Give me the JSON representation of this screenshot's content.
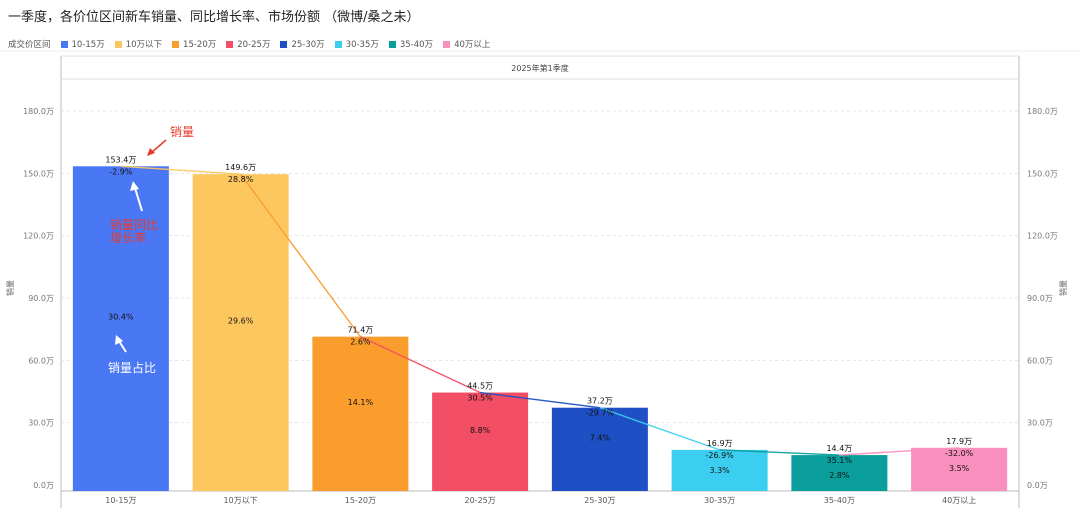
{
  "page": {
    "title": "一季度，各价位区间新车销量、同比增长率、市场份额 （微博/桑之未）",
    "legend_label": "成交价区间"
  },
  "chart_data": {
    "type": "bar",
    "panel_label": "2025年第1季度",
    "ylabel_left": "销量",
    "ylabel_right": "销量",
    "ylim": [
      0,
      180
    ],
    "yticks": [
      0,
      30,
      60,
      90,
      120,
      150,
      180
    ],
    "ytick_labels": [
      "0.0万",
      "30.0万",
      "60.0万",
      "90.0万",
      "120.0万",
      "150.0万",
      "180.0万"
    ],
    "categories": [
      "10-15万",
      "10万以下",
      "15-20万",
      "20-25万",
      "25-30万",
      "30-35万",
      "35-40万",
      "40万以上"
    ],
    "legend": [
      "10-15万",
      "10万以下",
      "15-20万",
      "20-25万",
      "25-30万",
      "30-35万",
      "35-40万",
      "40万以上"
    ],
    "colors": [
      "#4a78f5",
      "#fbc75e",
      "#fb9d2c",
      "#f24f66",
      "#1f4fc4",
      "#3ccef0",
      "#0a9f9d",
      "#f98fbd"
    ],
    "values": [
      153.4,
      149.6,
      71.4,
      44.5,
      37.2,
      16.9,
      14.4,
      17.9
    ],
    "value_labels": [
      "153.4万",
      "149.6万",
      "71.4万",
      "44.5万",
      "37.2万",
      "16.9万",
      "14.4万",
      "17.9万"
    ],
    "yoy": [
      "-2.9%",
      "28.8%",
      "2.6%",
      "30.5%",
      "-29.7%",
      "-26.9%",
      "35.1%",
      "-32.0%"
    ],
    "share": [
      "30.4%",
      "29.6%",
      "14.1%",
      "8.8%",
      "7.4%",
      "3.3%",
      "2.8%",
      "3.5%"
    ],
    "annotations": {
      "sales": "销量",
      "yoy_line1": "销量同比",
      "yoy_line2": "增长率",
      "share": "销量占比"
    }
  }
}
